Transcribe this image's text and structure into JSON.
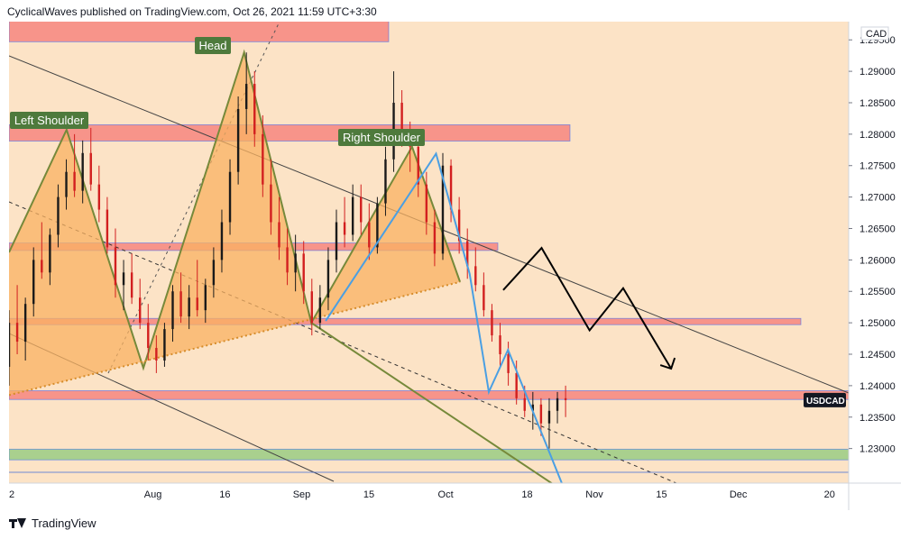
{
  "header": {
    "text": "CyclicalWaves published on TradingView.com, Oct 26, 2021 11:59 UTC+3:30"
  },
  "footer": {
    "brand": "TradingView",
    "logo_icon": "tradingview-logo-icon"
  },
  "colors": {
    "background": "#fce3c6",
    "pattern_fill": "#f9b262",
    "pattern_stroke": "#76893a",
    "resistance_zone": "#f7948a",
    "support_zone": "#a9d08e",
    "label_bg": "#4e7a3c",
    "candle_up": "#1a1a1a",
    "candle_down": "#d21f1f",
    "wave_line": "#4a9fe3",
    "projection": "#000000",
    "price_tag": "#131722"
  },
  "chart_data": {
    "type": "candlestick",
    "symbol": "USDCAD",
    "currency": "CAD",
    "y_ticks": [
      "1.29500",
      "1.29000",
      "1.28500",
      "1.28000",
      "1.27500",
      "1.27000",
      "1.26500",
      "1.26000",
      "1.25500",
      "1.25000",
      "1.24500",
      "1.24000",
      "1.23500",
      "1.23000"
    ],
    "x_ticks": [
      "2",
      "Aug",
      "16",
      "Sep",
      "15",
      "Oct",
      "18",
      "Nov",
      "15",
      "Dec",
      "20"
    ],
    "ylim": [
      1.2245,
      1.2979
    ],
    "xlim": [
      "2021-07-02",
      "2021-12-24"
    ],
    "last_price": 1.2377,
    "pattern_labels": [
      "Left Shoulder",
      "Head",
      "Right Shoulder"
    ],
    "head_and_shoulders": {
      "points": [
        {
          "date": "2021-07-02",
          "price": 1.2612
        },
        {
          "date": "2021-07-14",
          "price": 1.2807
        },
        {
          "date": "2021-07-30",
          "price": 1.2428
        },
        {
          "date": "2021-08-20",
          "price": 1.293
        },
        {
          "date": "2021-09-03",
          "price": 1.25
        },
        {
          "date": "2021-09-24",
          "price": 1.278
        },
        {
          "date": "2021-10-04",
          "price": 1.2565
        }
      ],
      "neckline": {
        "from": {
          "date": "2021-07-02",
          "price": 1.2385
        },
        "to": {
          "date": "2021-10-04",
          "price": 1.2565
        }
      }
    },
    "zones": [
      {
        "type": "resistance",
        "from": 1.298,
        "to": 1.2947
      },
      {
        "type": "resistance",
        "from": 1.2815,
        "to": 1.2789
      },
      {
        "type": "resistance",
        "from": 1.2627,
        "to": 1.2615
      },
      {
        "type": "resistance",
        "from": 1.2507,
        "to": 1.2497
      },
      {
        "type": "resistance",
        "from": 1.2392,
        "to": 1.2378
      },
      {
        "type": "support",
        "from": 1.2299,
        "to": 1.2282
      }
    ],
    "projection_path": [
      {
        "date": "2021-10-13",
        "price": 1.2552
      },
      {
        "date": "2021-10-21",
        "price": 1.2619
      },
      {
        "date": "2021-10-31",
        "price": 1.2488
      },
      {
        "date": "2021-11-07",
        "price": 1.2555
      },
      {
        "date": "2021-11-17",
        "price": 1.2427
      }
    ],
    "wave_path": [
      {
        "date": "2021-09-06",
        "price": 1.2503
      },
      {
        "date": "2021-09-29",
        "price": 1.2769
      },
      {
        "date": "2021-10-06",
        "price": 1.2578
      },
      {
        "date": "2021-10-10",
        "price": 1.239
      },
      {
        "date": "2021-10-14",
        "price": 1.2457
      },
      {
        "date": "2021-10-26",
        "price": 1.223
      }
    ],
    "candles": [
      [
        1.243,
        1.252,
        1.24,
        1.25
      ],
      [
        1.25,
        1.256,
        1.245,
        1.247
      ],
      [
        1.247,
        1.254,
        1.244,
        1.253
      ],
      [
        1.253,
        1.262,
        1.251,
        1.26
      ],
      [
        1.26,
        1.266,
        1.257,
        1.258
      ],
      [
        1.258,
        1.265,
        1.256,
        1.264
      ],
      [
        1.264,
        1.272,
        1.262,
        1.27
      ],
      [
        1.27,
        1.276,
        1.268,
        1.274
      ],
      [
        1.274,
        1.28,
        1.27,
        1.271
      ],
      [
        1.271,
        1.279,
        1.269,
        1.277
      ],
      [
        1.277,
        1.281,
        1.271,
        1.272
      ],
      [
        1.272,
        1.275,
        1.266,
        1.268
      ],
      [
        1.268,
        1.27,
        1.261,
        1.262
      ],
      [
        1.262,
        1.265,
        1.254,
        1.256
      ],
      [
        1.256,
        1.26,
        1.252,
        1.258
      ],
      [
        1.258,
        1.261,
        1.253,
        1.254
      ],
      [
        1.254,
        1.257,
        1.249,
        1.25
      ],
      [
        1.25,
        1.253,
        1.244,
        1.246
      ],
      [
        1.246,
        1.248,
        1.242,
        1.244
      ],
      [
        1.244,
        1.25,
        1.243,
        1.249
      ],
      [
        1.249,
        1.256,
        1.247,
        1.255
      ],
      [
        1.255,
        1.258,
        1.25,
        1.251
      ],
      [
        1.251,
        1.256,
        1.249,
        1.254
      ],
      [
        1.254,
        1.26,
        1.251,
        1.252
      ],
      [
        1.252,
        1.257,
        1.25,
        1.256
      ],
      [
        1.256,
        1.262,
        1.254,
        1.26
      ],
      [
        1.26,
        1.268,
        1.258,
        1.266
      ],
      [
        1.266,
        1.276,
        1.264,
        1.274
      ],
      [
        1.274,
        1.286,
        1.272,
        1.284
      ],
      [
        1.284,
        1.293,
        1.28,
        1.288
      ],
      [
        1.288,
        1.29,
        1.278,
        1.28
      ],
      [
        1.28,
        1.283,
        1.27,
        1.272
      ],
      [
        1.272,
        1.276,
        1.264,
        1.266
      ],
      [
        1.266,
        1.27,
        1.26,
        1.262
      ],
      [
        1.262,
        1.265,
        1.256,
        1.258
      ],
      [
        1.258,
        1.264,
        1.255,
        1.261
      ],
      [
        1.261,
        1.263,
        1.253,
        1.255
      ],
      [
        1.255,
        1.257,
        1.248,
        1.25
      ],
      [
        1.25,
        1.256,
        1.249,
        1.254
      ],
      [
        1.254,
        1.262,
        1.252,
        1.26
      ],
      [
        1.26,
        1.268,
        1.258,
        1.266
      ],
      [
        1.266,
        1.27,
        1.262,
        1.264
      ],
      [
        1.264,
        1.272,
        1.263,
        1.27
      ],
      [
        1.27,
        1.272,
        1.264,
        1.266
      ],
      [
        1.266,
        1.269,
        1.26,
        1.262
      ],
      [
        1.262,
        1.27,
        1.261,
        1.269
      ],
      [
        1.269,
        1.278,
        1.267,
        1.276
      ],
      [
        1.276,
        1.29,
        1.274,
        1.285
      ],
      [
        1.285,
        1.287,
        1.278,
        1.28
      ],
      [
        1.28,
        1.282,
        1.274,
        1.278
      ],
      [
        1.278,
        1.279,
        1.27,
        1.272
      ],
      [
        1.272,
        1.274,
        1.264,
        1.266
      ],
      [
        1.266,
        1.268,
        1.259,
        1.261
      ],
      [
        1.261,
        1.277,
        1.26,
        1.275
      ],
      [
        1.275,
        1.276,
        1.266,
        1.268
      ],
      [
        1.268,
        1.27,
        1.261,
        1.263
      ],
      [
        1.263,
        1.265,
        1.257,
        1.259
      ],
      [
        1.259,
        1.262,
        1.255,
        1.256
      ],
      [
        1.256,
        1.258,
        1.251,
        1.252
      ],
      [
        1.252,
        1.253,
        1.247,
        1.248
      ],
      [
        1.248,
        1.25,
        1.243,
        1.245
      ],
      [
        1.245,
        1.247,
        1.24,
        1.242
      ],
      [
        1.242,
        1.244,
        1.237,
        1.238
      ],
      [
        1.238,
        1.24,
        1.235,
        1.236
      ],
      [
        1.236,
        1.239,
        1.233,
        1.237
      ],
      [
        1.237,
        1.238,
        1.232,
        1.234
      ],
      [
        1.234,
        1.238,
        1.23,
        1.236
      ],
      [
        1.236,
        1.239,
        1.234,
        1.238
      ],
      [
        1.238,
        1.24,
        1.235,
        1.2377
      ]
    ]
  }
}
